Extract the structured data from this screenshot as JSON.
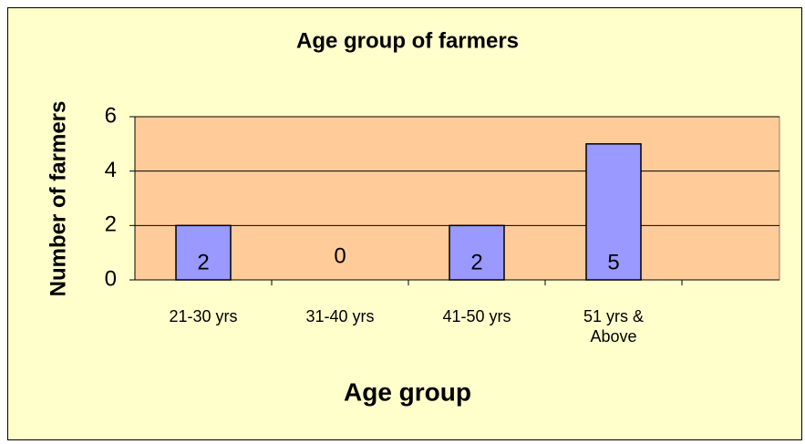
{
  "chart_data": {
    "type": "bar",
    "title": "Age group of farmers",
    "x_label": "Age group",
    "y_label": "Number of farmers",
    "categories": [
      "21-30 yrs",
      "31-40 yrs",
      "41-50 yrs",
      "51 yrs & Above"
    ],
    "values": [
      2,
      0,
      2,
      5
    ],
    "color": "#9999ff",
    "ylim": [
      0,
      6
    ],
    "yticks": [
      0,
      2,
      4,
      6
    ],
    "grid": true
  }
}
